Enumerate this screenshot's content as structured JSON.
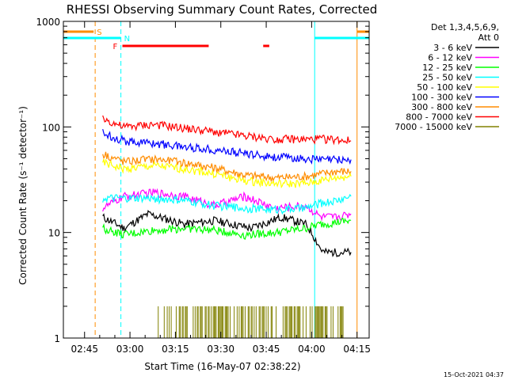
{
  "chart_data": {
    "type": "line",
    "title": "RHESSI Observing Summary Count Rates, Corrected",
    "xlabel": "Start Time (16-May-07 02:38:22)",
    "ylabel": "Corrected Count Rate (s⁻¹ detector⁻¹)",
    "x_ticks": [
      "02:45",
      "03:00",
      "03:15",
      "03:30",
      "03:45",
      "04:00",
      "04:15"
    ],
    "y_ticks": [
      "1",
      "10",
      "100",
      "1000"
    ],
    "y_scale": "log",
    "ylim": [
      1,
      1000
    ],
    "xlim_minutes_after_0238": [
      0,
      101
    ],
    "legend_header": [
      "Det 1,3,4,5,6,9,",
      "Att 0"
    ],
    "legend_position": "top-right",
    "series": [
      {
        "name": "3 - 6 keV",
        "color": "#000000",
        "t": [
          13,
          20,
          28,
          40,
          50,
          62,
          72,
          80,
          82,
          85,
          86,
          93,
          95
        ],
        "v": [
          14,
          11,
          15,
          12,
          13,
          11,
          14,
          12,
          10,
          7,
          6.5,
          6.5,
          6.5
        ]
      },
      {
        "name": "6 - 12 keV",
        "color": "#ff00ff",
        "t": [
          13,
          20,
          30,
          40,
          50,
          60,
          70,
          80,
          85,
          90,
          95
        ],
        "v": [
          17,
          22,
          24,
          22,
          18,
          22,
          17,
          18,
          14,
          14,
          15
        ]
      },
      {
        "name": "12 - 25 keV",
        "color": "#00ff00",
        "t": [
          13,
          20,
          30,
          40,
          50,
          60,
          70,
          80,
          85,
          90,
          95
        ],
        "v": [
          11,
          9.5,
          10.5,
          11,
          10.5,
          9.5,
          10,
          11,
          12,
          12.5,
          13
        ]
      },
      {
        "name": "25 - 50 keV",
        "color": "#00ffff",
        "t": [
          13,
          20,
          30,
          40,
          50,
          60,
          70,
          80,
          85,
          90,
          95
        ],
        "v": [
          21,
          21,
          21,
          20,
          18,
          17,
          16.5,
          17,
          19,
          20,
          22
        ]
      },
      {
        "name": "50 - 100 keV",
        "color": "#ffff00",
        "t": [
          13,
          20,
          30,
          40,
          50,
          60,
          70,
          80,
          85,
          90,
          95
        ],
        "v": [
          46,
          40,
          43,
          40,
          36,
          31,
          29,
          29,
          31,
          33,
          34
        ]
      },
      {
        "name": "100 - 300 keV",
        "color": "#0000ff",
        "t": [
          13,
          20,
          30,
          40,
          50,
          60,
          70,
          80,
          85,
          90,
          95
        ],
        "v": [
          88,
          74,
          70,
          65,
          61,
          56,
          52,
          50,
          49,
          49,
          49
        ]
      },
      {
        "name": "300 - 800 keV",
        "color": "#ff8c00",
        "t": [
          13,
          20,
          30,
          40,
          50,
          60,
          70,
          80,
          85,
          90,
          95
        ],
        "v": [
          56,
          47,
          50,
          46,
          41,
          35,
          33,
          34,
          36,
          38,
          38
        ]
      },
      {
        "name": "800 - 7000 keV",
        "color": "#ff0000",
        "t": [
          13,
          20,
          30,
          40,
          50,
          60,
          70,
          80,
          85,
          90,
          95
        ],
        "v": [
          120,
          100,
          106,
          97,
          90,
          82,
          77,
          76,
          77,
          76,
          74
        ]
      },
      {
        "name": "7000 - 15000 keV",
        "color": "#808000",
        "t": [],
        "v": []
      }
    ],
    "bars_7000_15000": {
      "color": "#808000",
      "t_start": 31,
      "t_end": 95,
      "v": 2
    },
    "flag_bars": [
      {
        "label": "S",
        "color": "#ff8c00",
        "segments": [
          [
            0,
            10
          ],
          [
            97,
            101
          ]
        ]
      },
      {
        "label": "N",
        "color": "#00ffff",
        "segments": [
          [
            0,
            19
          ],
          [
            83,
            101
          ]
        ]
      },
      {
        "label": "F",
        "color": "#ff0000",
        "segments": [
          [
            19.5,
            48
          ],
          [
            66,
            68
          ]
        ]
      }
    ],
    "vertical_lines": [
      {
        "t": 10.5,
        "color": "#ff8c00",
        "style": "dashed"
      },
      {
        "t": 19,
        "color": "#00ffff",
        "style": "dashed"
      },
      {
        "t": 83,
        "color": "#00ffff",
        "style": "solid"
      },
      {
        "t": 97,
        "color": "#ff8c00",
        "style": "solid"
      },
      {
        "t": 101,
        "color": "#ff8c00",
        "style": "dashed"
      }
    ]
  },
  "footer": "15-Oct-2021 04:37"
}
